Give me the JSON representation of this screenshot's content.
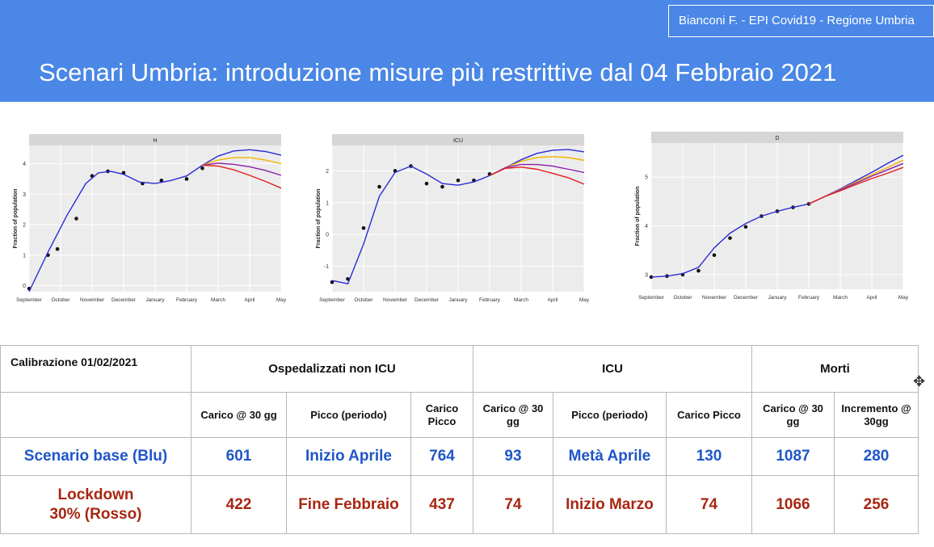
{
  "header": {
    "author": "Bianconi F. - EPI Covid19 - Regione Umbria",
    "title": "Scenari Umbria: introduzione misure più restrittive dal 04 Febbraio 2021"
  },
  "chart_data": [
    {
      "type": "line",
      "title": "H",
      "ylabel": "Fraction of population",
      "x_ticks": [
        "September",
        "October",
        "November",
        "December",
        "January",
        "February",
        "March",
        "April",
        "May"
      ],
      "ylim": [
        -0.2,
        4.6
      ],
      "y_ticks": [
        0,
        1,
        2,
        3,
        4
      ],
      "observed": {
        "x": [
          0,
          0.6,
          0.9,
          1.5,
          2.0,
          2.5,
          3.0,
          3.6,
          4.2,
          5.0,
          5.5
        ],
        "y": [
          -0.1,
          1.0,
          1.2,
          2.2,
          3.6,
          3.75,
          3.7,
          3.35,
          3.45,
          3.5,
          3.85
        ]
      },
      "series": [
        {
          "color": "#2b2bd6",
          "values": {
            "x": [
              0,
              0.6,
              1.2,
              1.8,
              2.2,
              2.6,
              3.0,
              3.5,
              4.0,
              4.5,
              5.0,
              5.5,
              6.0,
              6.5,
              7.0,
              7.5,
              8.0
            ],
            "y": [
              -0.2,
              1.1,
              2.3,
              3.35,
              3.7,
              3.75,
              3.65,
              3.4,
              3.35,
              3.45,
              3.6,
              3.95,
              4.25,
              4.42,
              4.46,
              4.4,
              4.28
            ]
          }
        },
        {
          "color": "#f0b400",
          "values": {
            "x": [
              5.5,
              6.0,
              6.5,
              7.0,
              7.5,
              8.0
            ],
            "y": [
              3.95,
              4.12,
              4.2,
              4.2,
              4.12,
              4.0
            ]
          }
        },
        {
          "color": "#8a1fa8",
          "values": {
            "x": [
              5.5,
              6.0,
              6.5,
              7.0,
              7.5,
              8.0
            ],
            "y": [
              3.95,
              4.02,
              3.98,
              3.9,
              3.78,
              3.62
            ]
          }
        },
        {
          "color": "#e02020",
          "values": {
            "x": [
              5.5,
              6.0,
              6.5,
              7.0,
              7.5,
              8.0
            ],
            "y": [
              3.95,
              3.92,
              3.8,
              3.62,
              3.42,
              3.2
            ]
          }
        }
      ]
    },
    {
      "type": "line",
      "title": "ICU",
      "ylabel": "Fraction of population",
      "x_ticks": [
        "September",
        "October",
        "November",
        "December",
        "January",
        "February",
        "March",
        "April",
        "May"
      ],
      "ylim": [
        -1.8,
        2.8
      ],
      "y_ticks": [
        -1,
        0,
        1,
        2
      ],
      "observed": {
        "x": [
          0,
          0.5,
          1.0,
          1.5,
          2.0,
          2.5,
          3.0,
          3.5,
          4.0,
          4.5,
          5.0
        ],
        "y": [
          -1.5,
          -1.4,
          0.2,
          1.5,
          2.0,
          2.15,
          1.6,
          1.5,
          1.7,
          1.7,
          1.9
        ]
      },
      "series": [
        {
          "color": "#2b2bd6",
          "values": {
            "x": [
              0,
              0.5,
              1.0,
              1.5,
              2.0,
              2.5,
              3.0,
              3.5,
              4.0,
              4.5,
              5.0,
              5.5,
              6.0,
              6.5,
              7.0,
              7.5,
              8.0
            ],
            "y": [
              -1.45,
              -1.55,
              -0.3,
              1.2,
              1.95,
              2.15,
              1.9,
              1.6,
              1.55,
              1.65,
              1.85,
              2.1,
              2.35,
              2.55,
              2.65,
              2.67,
              2.6
            ]
          }
        },
        {
          "color": "#f0b400",
          "values": {
            "x": [
              5.0,
              5.5,
              6.0,
              6.5,
              7.0,
              7.5,
              8.0
            ],
            "y": [
              1.85,
              2.1,
              2.3,
              2.42,
              2.45,
              2.42,
              2.33
            ]
          }
        },
        {
          "color": "#8a1fa8",
          "values": {
            "x": [
              5.0,
              5.5,
              6.0,
              6.5,
              7.0,
              7.5,
              8.0
            ],
            "y": [
              1.85,
              2.1,
              2.2,
              2.2,
              2.15,
              2.05,
              1.95
            ]
          }
        },
        {
          "color": "#e02020",
          "values": {
            "x": [
              5.0,
              5.5,
              6.0,
              6.5,
              7.0,
              7.5,
              8.0
            ],
            "y": [
              1.85,
              2.08,
              2.12,
              2.05,
              1.92,
              1.78,
              1.58
            ]
          }
        }
      ]
    },
    {
      "type": "line",
      "title": "D",
      "ylabel": "Fraction of population",
      "x_ticks": [
        "September",
        "October",
        "November",
        "December",
        "January",
        "February",
        "March",
        "April",
        "May"
      ],
      "ylim": [
        2.7,
        5.7
      ],
      "y_ticks": [
        3,
        4,
        5
      ],
      "observed": {
        "x": [
          0,
          0.5,
          1.0,
          1.5,
          2.0,
          2.5,
          3.0,
          3.5,
          4.0,
          4.5,
          5.0
        ],
        "y": [
          2.95,
          2.97,
          3.0,
          3.08,
          3.4,
          3.75,
          3.98,
          4.2,
          4.3,
          4.38,
          4.45
        ]
      },
      "series": [
        {
          "color": "#2b2bd6",
          "values": {
            "x": [
              0,
              0.5,
              1.0,
              1.5,
              2.0,
              2.5,
              3.0,
              3.5,
              4.0,
              4.5,
              5.0,
              5.5,
              6.0,
              6.5,
              7.0,
              7.5,
              8.0
            ],
            "y": [
              2.95,
              2.97,
              3.02,
              3.15,
              3.55,
              3.85,
              4.05,
              4.2,
              4.3,
              4.38,
              4.45,
              4.6,
              4.76,
              4.93,
              5.1,
              5.28,
              5.45
            ]
          }
        },
        {
          "color": "#f0b400",
          "values": {
            "x": [
              5.0,
              5.5,
              6.0,
              6.5,
              7.0,
              7.5,
              8.0
            ],
            "y": [
              4.45,
              4.6,
              4.75,
              4.9,
              5.05,
              5.2,
              5.35
            ]
          }
        },
        {
          "color": "#8a1fa8",
          "values": {
            "x": [
              5.0,
              5.5,
              6.0,
              6.5,
              7.0,
              7.5,
              8.0
            ],
            "y": [
              4.45,
              4.6,
              4.74,
              4.88,
              5.02,
              5.15,
              5.28
            ]
          }
        },
        {
          "color": "#e02020",
          "values": {
            "x": [
              5.0,
              5.5,
              6.0,
              6.5,
              7.0,
              7.5,
              8.0
            ],
            "y": [
              4.45,
              4.6,
              4.72,
              4.85,
              4.97,
              5.08,
              5.2
            ]
          }
        }
      ]
    }
  ],
  "table": {
    "calibrazione": "Calibrazione 01/02/2021",
    "groups": [
      "Ospedalizzati non ICU",
      "ICU",
      "Morti"
    ],
    "subheaders": [
      "Carico @ 30 gg",
      "Picco (periodo)",
      "Carico Picco",
      "Carico @ 30 gg",
      "Picco (periodo)",
      "Carico Picco",
      "Carico @ 30 gg",
      "Incremento @ 30gg"
    ],
    "rows": [
      {
        "label": "Scenario base (Blu)",
        "values": [
          "601",
          "Inizio Aprile",
          "764",
          "93",
          "Metà Aprile",
          "130",
          "1087",
          "280"
        ]
      },
      {
        "label": "Lockdown 30% (Rosso)",
        "values": [
          "422",
          "Fine Febbraio",
          "437",
          "74",
          "Inizio Marzo",
          "74",
          "1066",
          "256"
        ]
      }
    ]
  }
}
